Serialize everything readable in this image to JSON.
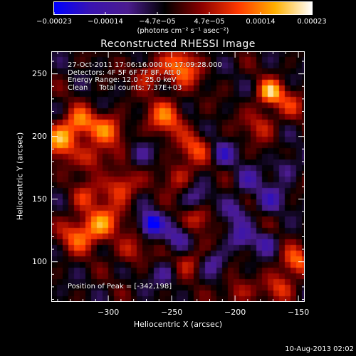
{
  "footer": {
    "datestamp": "10-Aug-2013 02:02"
  },
  "chart_data": {
    "type": "heatmap",
    "title": "Reconstructed RHESSI Image",
    "xlabel": "Heliocentric X (arcsec)",
    "ylabel": "Heliocentric Y (arcsec)",
    "xlim": [
      -345,
      -145
    ],
    "ylim": [
      68,
      268
    ],
    "x_ticks": [
      {
        "value": -300,
        "label": "−300"
      },
      {
        "value": -250,
        "label": "−250"
      },
      {
        "value": -200,
        "label": "−200"
      },
      {
        "value": -150,
        "label": "−150"
      }
    ],
    "y_ticks": [
      {
        "value": 100,
        "label": "100"
      },
      {
        "value": 150,
        "label": "150"
      },
      {
        "value": 200,
        "label": "200"
      },
      {
        "value": 250,
        "label": "250"
      }
    ],
    "colorbar": {
      "range": [
        -0.00023,
        0.00023
      ],
      "labels": [
        "−0.00023",
        "−0.00014",
        "−4.7e−05",
        "4.7e−05",
        "0.00014",
        "0.00023"
      ],
      "unit_label": "(photons cm⁻² s⁻¹ asec⁻²)",
      "stops": [
        "#0000ff",
        "#3a14b0",
        "#4b1c8f",
        "#000000",
        "#8a0000",
        "#ff3800",
        "#ffb000",
        "#ffffff"
      ]
    },
    "annotations": {
      "time_range": "27-Oct-2011 17:06:16.000 to 17:09:28.000",
      "detectors": "Detectors: 4F 5F 6F 7F 8F, Att 0",
      "energy": "Energy Range: 12.0 - 25.0 keV",
      "clean": "Clean     Total counts: 7.37E+03",
      "peak": "Position of Peak = [-342,198]"
    },
    "peak_position": [
      -342,
      198
    ],
    "sources": [
      {
        "x": -337,
        "y": 197,
        "w": 9,
        "amp": 2.3
      },
      {
        "x": -322,
        "y": 212,
        "w": 8,
        "amp": 1.7
      },
      {
        "x": -300,
        "y": 205,
        "w": 9,
        "amp": 1.6
      },
      {
        "x": -312,
        "y": 183,
        "w": 8,
        "amp": 1.3
      },
      {
        "x": -290,
        "y": 160,
        "w": 9,
        "amp": 1.6
      },
      {
        "x": -306,
        "y": 130,
        "w": 10,
        "amp": 2.0
      },
      {
        "x": -325,
        "y": 120,
        "w": 9,
        "amp": 1.4
      },
      {
        "x": -320,
        "y": 152,
        "w": 8,
        "amp": 1.0
      },
      {
        "x": -282,
        "y": 108,
        "w": 8,
        "amp": 1.0
      },
      {
        "x": -255,
        "y": 215,
        "w": 10,
        "amp": 1.6
      },
      {
        "x": -242,
        "y": 255,
        "w": 10,
        "amp": 1.8
      },
      {
        "x": -232,
        "y": 190,
        "w": 9,
        "amp": 1.3
      },
      {
        "x": -246,
        "y": 168,
        "w": 8,
        "amp": 1.0
      },
      {
        "x": -268,
        "y": 250,
        "w": 8,
        "amp": 1.2
      },
      {
        "x": -228,
        "y": 135,
        "w": 8,
        "amp": 1.0
      },
      {
        "x": -236,
        "y": 100,
        "w": 8,
        "amp": 1.0
      },
      {
        "x": -200,
        "y": 75,
        "w": 8,
        "amp": 1.0
      },
      {
        "x": -172,
        "y": 235,
        "w": 7,
        "amp": 2.3
      },
      {
        "x": -180,
        "y": 210,
        "w": 9,
        "amp": 1.0
      },
      {
        "x": -155,
        "y": 225,
        "w": 8,
        "amp": 0.9
      },
      {
        "x": -152,
        "y": 100,
        "w": 8,
        "amp": 1.6
      },
      {
        "x": -165,
        "y": 80,
        "w": 8,
        "amp": 1.3
      },
      {
        "x": -266,
        "y": 130,
        "w": 6,
        "amp": -2.6
      },
      {
        "x": -210,
        "y": 186,
        "w": 6,
        "amp": -1.4
      },
      {
        "x": -172,
        "y": 150,
        "w": 7,
        "amp": -1.2
      },
      {
        "x": -190,
        "y": 165,
        "w": 7,
        "amp": -1.0
      },
      {
        "x": -245,
        "y": 120,
        "w": 7,
        "amp": -1.0
      },
      {
        "x": -195,
        "y": 120,
        "w": 7,
        "amp": -1.1
      },
      {
        "x": -215,
        "y": 100,
        "w": 7,
        "amp": -0.9
      },
      {
        "x": -175,
        "y": 115,
        "w": 6,
        "amp": -1.0
      },
      {
        "x": -200,
        "y": 140,
        "w": 7,
        "amp": -0.9
      },
      {
        "x": -160,
        "y": 175,
        "w": 7,
        "amp": -0.9
      },
      {
        "x": -230,
        "y": 150,
        "w": 7,
        "amp": -0.8
      },
      {
        "x": -275,
        "y": 185,
        "w": 7,
        "amp": -0.7
      },
      {
        "x": -255,
        "y": 90,
        "w": 7,
        "amp": -0.8
      }
    ]
  }
}
